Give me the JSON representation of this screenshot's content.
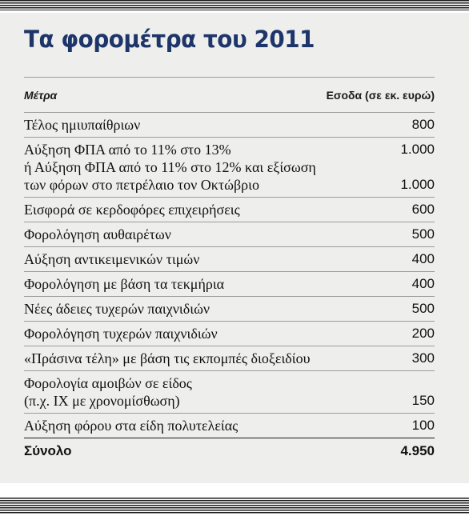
{
  "title": "Τα φορομέτρα του 2011",
  "header": {
    "left": "Μέτρα",
    "right": "Εσοδα (σε εκ. ευρώ)"
  },
  "rows": [
    {
      "label": "Τέλος ημιυπαίθριων",
      "value": "800"
    },
    {
      "label": "Αύξηση ΦΠΑ από το 11% στο 13%",
      "value": "1.000"
    },
    {
      "label": "ή Αύξηση ΦΠΑ από το 11% στο 12% και εξίσωση",
      "label2": "των φόρων στο πετρέλαιο τον Οκτώβριο",
      "value": "1.000"
    },
    {
      "label": "Εισφορά σε κερδοφόρες επιχειρήσεις",
      "value": "600"
    },
    {
      "label": "Φορολόγηση αυθαιρέτων",
      "value": "500"
    },
    {
      "label": "Αύξηση αντικειμενικών τιμών",
      "value": "400"
    },
    {
      "label": "Φορολόγηση με βάση τα τεκμήρια",
      "value": "400"
    },
    {
      "label": "Νέες άδειες τυχερών παιχνιδιών",
      "value": "500"
    },
    {
      "label": "Φορολόγηση τυχερών παιχνιδιών",
      "value": "200"
    },
    {
      "label": "«Πράσινα τέλη» με βάση τις εκπομπές διοξειδίου",
      "value": "300"
    },
    {
      "label": "Φορολογία αμοιβών σε είδος",
      "label2": "(π.χ. ΙΧ με χρονομίσθωση)",
      "value": "150"
    },
    {
      "label": "Αύξηση φόρου στα είδη πολυτελείας",
      "value": "100"
    }
  ],
  "total": {
    "label": "Σύνολο",
    "value": "4.950"
  }
}
